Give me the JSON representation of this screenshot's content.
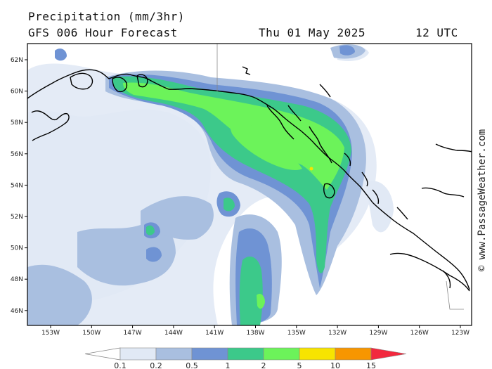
{
  "header": {
    "title": "Precipitation (mm/3hr)",
    "subtitle": "GFS 006 Hour Forecast",
    "date": "Thu 01 May 2025",
    "time": "12 UTC"
  },
  "credit": "© www.PassageWeather.com",
  "map": {
    "region": "Gulf of Alaska / British Columbia coast",
    "lon_labels": [
      "153W",
      "150W",
      "147W",
      "144W",
      "141W",
      "138W",
      "135W",
      "132W",
      "129W",
      "126W",
      "123W"
    ],
    "lat_labels": [
      "62N",
      "60N",
      "58N",
      "56N",
      "54N",
      "52N",
      "50N",
      "48N",
      "46N"
    ],
    "lon_range": [
      -154.5,
      -122.5
    ],
    "lat_range": [
      45,
      63
    ]
  },
  "legend": {
    "labels": [
      "0.1",
      "0.2",
      "0.5",
      "1",
      "2",
      "5",
      "10",
      "15"
    ],
    "colors": [
      "#e1e9f5",
      "#a9bfe0",
      "#6f93d4",
      "#3cc98a",
      "#6cf35a",
      "#f7e400",
      "#f79600",
      "#f2283e"
    ]
  },
  "colors": {
    "very_light": "#e1e9f5",
    "light": "#a9bfe0",
    "medium": "#6f93d4",
    "teal": "#3cc98a",
    "green": "#6cf35a",
    "yellow": "#f7e400"
  }
}
